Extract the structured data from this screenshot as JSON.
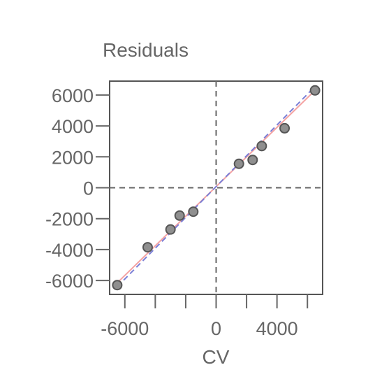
{
  "chart_data": {
    "type": "scatter",
    "title": "Residuals",
    "xlabel": "CV",
    "ylabel": "",
    "xlim": [
      -7000,
      7000
    ],
    "ylim": [
      -6900,
      6900
    ],
    "x_ticks": [
      -6000,
      -4000,
      -2000,
      0,
      2000,
      4000,
      6000
    ],
    "x_tick_labels": [
      {
        "value": -6000,
        "label": "-6000"
      },
      {
        "value": 0,
        "label": "0"
      },
      {
        "value": 4000,
        "label": "4000"
      }
    ],
    "y_ticks": [
      6000,
      4000,
      2000,
      0,
      -2000,
      -4000,
      -6000
    ],
    "y_tick_labels": [
      {
        "value": 6000,
        "label": "6000"
      },
      {
        "value": 4000,
        "label": "4000"
      },
      {
        "value": 2000,
        "label": "2000"
      },
      {
        "value": 0,
        "label": "0"
      },
      {
        "value": -2000,
        "label": "-2000"
      },
      {
        "value": -4000,
        "label": "-4000"
      },
      {
        "value": -6000,
        "label": "-6000"
      }
    ],
    "reference_lines": {
      "x0": true,
      "y0": true
    },
    "grid": false,
    "points": [
      {
        "x": -6500,
        "y": -6300
      },
      {
        "x": -4500,
        "y": -3850
      },
      {
        "x": -3000,
        "y": -2700
      },
      {
        "x": -2400,
        "y": -1800
      },
      {
        "x": -1500,
        "y": -1550
      },
      {
        "x": 1500,
        "y": 1550
      },
      {
        "x": 2400,
        "y": 1800
      },
      {
        "x": 3000,
        "y": 2700
      },
      {
        "x": 4500,
        "y": 3850
      },
      {
        "x": 6500,
        "y": 6300
      }
    ],
    "fit_lines": [
      {
        "style": "solid",
        "color": "#f4a3a3",
        "from": [
          -6500,
          -6150
        ],
        "to": [
          6500,
          6300
        ]
      },
      {
        "style": "dashed",
        "color": "#7b7fd6",
        "from": [
          -6500,
          -6400
        ],
        "to": [
          6500,
          6550
        ]
      }
    ],
    "colors": {
      "point_fill": "#8f8f8f",
      "point_stroke": "#555555",
      "axis": "#666666",
      "frame": "#555555",
      "reference_line": "#666666"
    }
  }
}
